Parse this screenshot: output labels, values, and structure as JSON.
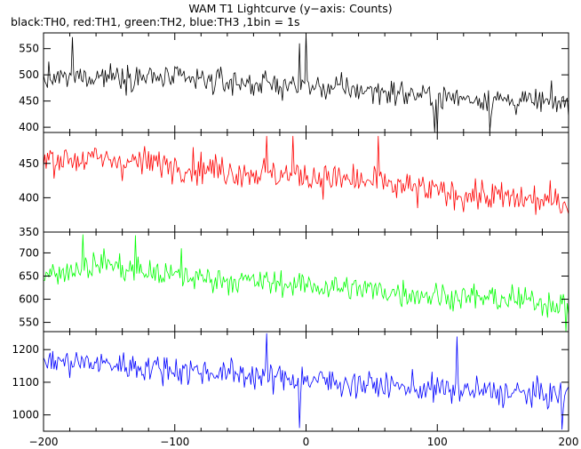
{
  "chart_data": {
    "type": "line",
    "title": "WAM T1 Lightcurve (y−axis: Counts)",
    "subtitle": "black:TH0, red:TH1, green:TH2, blue:TH3 ,1bin = 1s",
    "x_ticks": [
      -200,
      -100,
      0,
      100,
      200
    ],
    "x_tick_labels": [
      "−200",
      "−100",
      "0",
      "100",
      "200"
    ],
    "xlim": [
      -200,
      200
    ],
    "bin_seconds": 1,
    "series": [
      {
        "name": "TH0",
        "color": "#000000",
        "ylim": [
          390,
          580
        ],
        "y_ticks": [
          400,
          450,
          500,
          550
        ],
        "trend": [
          [
            -200,
            490
          ],
          [
            -150,
            500
          ],
          [
            -100,
            492
          ],
          [
            -50,
            485
          ],
          [
            0,
            478
          ],
          [
            50,
            470
          ],
          [
            100,
            458
          ],
          [
            150,
            452
          ],
          [
            200,
            445
          ]
        ],
        "noise_std": 17,
        "spikes": [
          [
            -178,
            572
          ],
          [
            0,
            590
          ],
          [
            -5,
            560
          ],
          [
            98,
            385
          ],
          [
            100,
            390
          ],
          [
            140,
            392
          ]
        ]
      },
      {
        "name": "TH1",
        "color": "#ff0000",
        "ylim": [
          350,
          495
        ],
        "y_ticks": [
          350,
          400,
          450
        ],
        "trend": [
          [
            -200,
            458
          ],
          [
            -150,
            455
          ],
          [
            -100,
            448
          ],
          [
            -50,
            438
          ],
          [
            0,
            432
          ],
          [
            50,
            422
          ],
          [
            100,
            408
          ],
          [
            150,
            400
          ],
          [
            200,
            392
          ]
        ],
        "noise_std": 16,
        "spikes": [
          [
            -10,
            490
          ],
          [
            -30,
            490
          ],
          [
            55,
            490
          ]
        ]
      },
      {
        "name": "TH2",
        "color": "#00ff00",
        "ylim": [
          530,
          745
        ],
        "y_ticks": [
          550,
          600,
          650,
          700
        ],
        "trend": [
          [
            -200,
            652
          ],
          [
            -150,
            680
          ],
          [
            -140,
            665
          ],
          [
            -100,
            650
          ],
          [
            -50,
            640
          ],
          [
            0,
            630
          ],
          [
            50,
            620
          ],
          [
            100,
            608
          ],
          [
            150,
            600
          ],
          [
            200,
            590
          ]
        ],
        "noise_std": 20,
        "spikes": [
          [
            -170,
            740
          ],
          [
            -130,
            738
          ],
          [
            -95,
            710
          ],
          [
            198,
            528
          ]
        ]
      },
      {
        "name": "TH3",
        "color": "#0000ff",
        "ylim": [
          950,
          1255
        ],
        "y_ticks": [
          1000,
          1100,
          1200
        ],
        "trend": [
          [
            -200,
            1165
          ],
          [
            -150,
            1155
          ],
          [
            -100,
            1140
          ],
          [
            -50,
            1125
          ],
          [
            0,
            1108
          ],
          [
            50,
            1092
          ],
          [
            100,
            1078
          ],
          [
            150,
            1068
          ],
          [
            200,
            1060
          ]
        ],
        "noise_std": 30,
        "spikes": [
          [
            -30,
            1250
          ],
          [
            -5,
            960
          ],
          [
            115,
            1240
          ],
          [
            195,
            955
          ]
        ]
      }
    ]
  }
}
